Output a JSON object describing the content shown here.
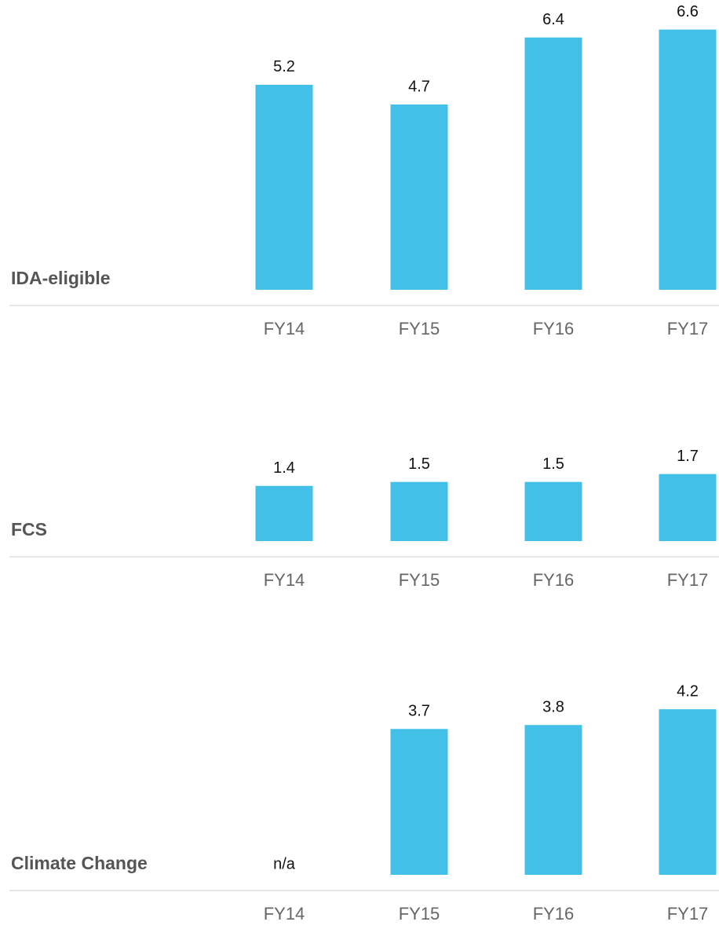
{
  "chart_data": [
    {
      "type": "bar",
      "title": "IDA-eligible",
      "categories": [
        "FY14",
        "FY15",
        "FY16",
        "FY17"
      ],
      "values": [
        5.2,
        4.7,
        6.4,
        6.6
      ],
      "color": "#42c0e8"
    },
    {
      "type": "bar",
      "title": "FCS",
      "categories": [
        "FY14",
        "FY15",
        "FY16",
        "FY17"
      ],
      "values": [
        1.4,
        1.5,
        1.5,
        1.7
      ],
      "color": "#42c0e8"
    },
    {
      "type": "bar",
      "title": "Climate Change",
      "categories": [
        "FY14",
        "FY15",
        "FY16",
        "FY17"
      ],
      "values": [
        null,
        3.7,
        3.8,
        4.2
      ],
      "value_labels": [
        "n/a",
        "3.7",
        "3.8",
        "4.2"
      ],
      "color": "#42c0e8"
    }
  ]
}
